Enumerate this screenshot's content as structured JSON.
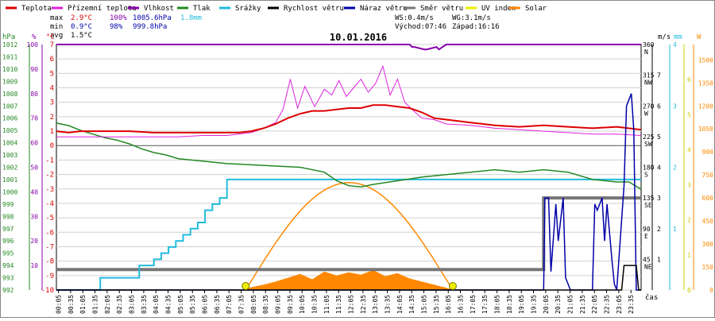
{
  "chart_data": {
    "type": "line",
    "title": "10.01.2016",
    "xlabel": "čas",
    "x_ticks": [
      "00:05",
      "00:35",
      "01:05",
      "01:35",
      "02:05",
      "02:35",
      "03:05",
      "03:35",
      "04:05",
      "04:35",
      "05:05",
      "05:35",
      "06:05",
      "06:35",
      "07:05",
      "07:35",
      "08:05",
      "08:35",
      "09:05",
      "09:35",
      "10:05",
      "10:35",
      "11:05",
      "11:35",
      "12:05",
      "12:35",
      "13:05",
      "13:35",
      "14:05",
      "14:35",
      "15:05",
      "15:35",
      "16:05",
      "16:35",
      "17:05",
      "17:35",
      "18:05",
      "18:35",
      "19:05",
      "19:35",
      "20:05",
      "20:35",
      "21:05",
      "21:35",
      "22:05",
      "22:35",
      "23:05",
      "23:35"
    ],
    "legend": [
      {
        "name": "Teplota",
        "color": "#dd0000"
      },
      {
        "name": "Přízemní teplota",
        "color": "#dd22dd"
      },
      {
        "name": "Vlhkost",
        "color": "#8800aa"
      },
      {
        "name": "Tlak",
        "color": "#228822"
      },
      {
        "name": "Srážky",
        "color": "#22bbdd"
      },
      {
        "name": "Rychlost větru",
        "color": "#000000"
      },
      {
        "name": "Náraz větru",
        "color": "#0000aa"
      },
      {
        "name": "Směr větru",
        "color": "#777777"
      },
      {
        "name": "UV index",
        "color": "#eeee00"
      },
      {
        "name": "Solar",
        "color": "#ff8800"
      }
    ],
    "stats": [
      {
        "label": "max",
        "temp": "2.9°C",
        "hum": "100%",
        "press": "1005.6hPa",
        "rain": "1.8mm"
      },
      {
        "label": "min",
        "temp": "0.9°C",
        "hum": "98%",
        "press": "999.8hPa",
        "rain": ""
      },
      {
        "label": "avg",
        "temp": "1.5°C",
        "hum": "",
        "press": "",
        "rain": ""
      }
    ],
    "info": {
      "ws": "WS:0.4m/s",
      "wg": "WG:3.1m/s",
      "sunrise": "Východ:07:46",
      "sunset": "Západ:16:16"
    },
    "axes": {
      "hpa": {
        "unit": "hPa",
        "ticks": [
          "992",
          "993",
          "994",
          "995",
          "996",
          "997",
          "998",
          "999",
          "1000",
          "1001",
          "1002",
          "1003",
          "1004",
          "1005",
          "1006",
          "1007",
          "1008",
          "1009",
          "1010",
          "1011",
          "1012"
        ]
      },
      "pct": {
        "unit": "%",
        "ticks": [
          "10",
          "20",
          "30",
          "40",
          "50",
          "60",
          "70",
          "80",
          "90",
          "100"
        ]
      },
      "temp": {
        "unit": "°C",
        "ticks": [
          "-10",
          "-9",
          "-8",
          "-7",
          "-6",
          "-5",
          "-4",
          "-3",
          "-2",
          "-1",
          "0",
          "1",
          "2",
          "3",
          "4",
          "5",
          "6",
          "7"
        ]
      },
      "dir": {
        "ticks": [
          {
            "v": "360",
            "d": "N"
          },
          {
            "v": "315",
            "d": "NW"
          },
          {
            "v": "270",
            "d": "W"
          },
          {
            "v": "225",
            "d": "SW"
          },
          {
            "v": "180",
            "d": "S"
          },
          {
            "v": "135",
            "d": "SE"
          },
          {
            "v": "90",
            "d": "E"
          },
          {
            "v": "45",
            "d": "NE"
          }
        ]
      },
      "ms": {
        "unit": "m/s",
        "ticks": [
          "1",
          "2",
          "3",
          "4",
          "5",
          "6",
          "7"
        ]
      },
      "mm": {
        "unit": "mm",
        "ticks": [
          "1",
          "2",
          "3",
          "4"
        ]
      },
      "uv": {
        "ticks": [
          "0",
          "1",
          "2",
          "3",
          "4",
          "5",
          "6"
        ]
      },
      "w": {
        "unit": "W",
        "ticks": [
          "0",
          "150",
          "300",
          "450",
          "600",
          "750",
          "900",
          "1050",
          "1200",
          "1350",
          "1500"
        ]
      }
    },
    "series": [
      {
        "name": "Teplota",
        "unit": "°C",
        "x": [
          0,
          0.5,
          1,
          2,
          3,
          4,
          5,
          6,
          7,
          7.5,
          8,
          8.5,
          9,
          9.5,
          10,
          10.5,
          11,
          11.5,
          12,
          12.5,
          13,
          13.5,
          14,
          14.5,
          15,
          15.5,
          16,
          17,
          18,
          19,
          20,
          21,
          22,
          23,
          24
        ],
        "values": [
          1.0,
          0.9,
          1.0,
          1.0,
          1.0,
          0.9,
          0.9,
          0.9,
          0.9,
          0.9,
          1.0,
          1.2,
          1.5,
          1.9,
          2.2,
          2.4,
          2.4,
          2.5,
          2.6,
          2.6,
          2.8,
          2.8,
          2.7,
          2.6,
          2.3,
          1.9,
          1.8,
          1.6,
          1.4,
          1.3,
          1.4,
          1.3,
          1.2,
          1.3,
          1.1
        ]
      },
      {
        "name": "Přízemní teplota",
        "unit": "°C",
        "x": [
          0,
          1,
          2,
          3,
          4,
          5,
          6,
          7,
          7.5,
          8,
          8.5,
          9,
          9.3,
          9.6,
          9.9,
          10.2,
          10.6,
          11,
          11.3,
          11.6,
          11.9,
          12.2,
          12.5,
          12.8,
          13.1,
          13.4,
          13.7,
          14,
          14.3,
          14.6,
          15,
          15.5,
          16,
          17,
          18,
          19,
          20,
          21,
          22,
          23,
          24
        ],
        "values": [
          0.6,
          0.6,
          0.6,
          0.6,
          0.6,
          0.6,
          0.7,
          0.7,
          0.8,
          0.9,
          1.2,
          1.6,
          2.5,
          4.6,
          2.6,
          4.1,
          2.7,
          3.9,
          3.5,
          4.5,
          3.4,
          4.0,
          4.6,
          3.7,
          4.3,
          5.5,
          3.5,
          4.6,
          3.0,
          2.5,
          1.9,
          1.8,
          1.5,
          1.4,
          1.2,
          1.1,
          1.0,
          0.9,
          0.8,
          0.8,
          0.7
        ]
      },
      {
        "name": "Vlhkost",
        "unit": "%",
        "x": [
          0,
          14.5,
          14.6,
          14.7,
          15.1,
          15.2,
          15.6,
          15.7,
          16.0,
          24
        ],
        "values": [
          100,
          100,
          99,
          99,
          98,
          98,
          99,
          98,
          100,
          100
        ]
      },
      {
        "name": "Tlak",
        "unit": "hPa",
        "x": [
          0,
          0.5,
          1,
          1.5,
          2,
          2.5,
          3,
          3.5,
          4,
          4.5,
          5,
          6,
          7,
          8,
          9,
          10,
          11,
          11.5,
          12,
          12.5,
          13,
          14,
          15,
          16,
          17,
          18,
          19,
          20,
          21,
          22,
          23,
          23.5,
          24
        ],
        "values": [
          1005.6,
          1005.4,
          1005.0,
          1004.7,
          1004.4,
          1004.2,
          1003.9,
          1003.5,
          1003.2,
          1003.0,
          1002.7,
          1002.5,
          1002.3,
          1002.2,
          1002.1,
          1002.0,
          1001.6,
          1000.9,
          1000.5,
          1000.4,
          1000.6,
          1000.9,
          1001.2,
          1001.4,
          1001.6,
          1001.8,
          1001.6,
          1001.8,
          1001.6,
          1001.0,
          1000.8,
          1000.8,
          1000.2
        ]
      },
      {
        "name": "Srážky",
        "unit": "mm",
        "x": [
          0,
          1.8,
          1.8,
          3.4,
          3.4,
          4.0,
          4.0,
          4.3,
          4.3,
          4.6,
          4.6,
          4.9,
          4.9,
          5.2,
          5.2,
          5.5,
          5.5,
          5.8,
          5.8,
          6.1,
          6.1,
          6.4,
          6.4,
          6.7,
          6.7,
          7.0,
          7.0,
          24
        ],
        "values": [
          0,
          0,
          0.2,
          0.2,
          0.4,
          0.4,
          0.5,
          0.5,
          0.6,
          0.6,
          0.7,
          0.7,
          0.8,
          0.8,
          0.9,
          0.9,
          1.0,
          1.0,
          1.1,
          1.1,
          1.3,
          1.3,
          1.4,
          1.4,
          1.5,
          1.5,
          1.8,
          1.8
        ]
      },
      {
        "name": "Náraz větru",
        "unit": "m/s",
        "x": [
          0,
          20.0,
          20.05,
          20.2,
          20.3,
          20.5,
          20.6,
          20.8,
          20.9,
          21.1,
          22.0,
          22.1,
          22.2,
          22.4,
          22.5,
          22.6,
          22.8,
          22.9,
          23.0,
          23.3,
          23.4,
          23.6,
          23.7,
          23.8,
          24
        ],
        "values": [
          0,
          0,
          1.5,
          1.5,
          0.3,
          1.4,
          0.8,
          1.5,
          0.2,
          0,
          0,
          1.4,
          1.3,
          1.5,
          0.8,
          1.4,
          0.5,
          0.1,
          0,
          1.7,
          3.0,
          3.2,
          2.6,
          0,
          0
        ]
      },
      {
        "name": "Rychlost větru",
        "unit": "m/s",
        "x": [
          0,
          23.2,
          23.3,
          23.8,
          23.9,
          24
        ],
        "values": [
          0,
          0,
          0.4,
          0.4,
          0,
          0
        ]
      },
      {
        "name": "Směr větru",
        "unit": "°",
        "x": [
          0,
          20.0,
          20.0,
          24
        ],
        "values": [
          30,
          30,
          135,
          135
        ]
      },
      {
        "name": "Solar",
        "unit": "W",
        "x": [
          7.6,
          8.0,
          8.5,
          9.0,
          9.5,
          10.0,
          10.5,
          11.0,
          11.5,
          12.0,
          12.5,
          13.0,
          13.5,
          14.0,
          14.5,
          15.0,
          15.5,
          16.0,
          16.3
        ],
        "values": [
          0,
          18,
          35,
          55,
          80,
          105,
          70,
          120,
          95,
          115,
          100,
          130,
          90,
          110,
          75,
          55,
          35,
          15,
          0
        ]
      },
      {
        "name": "Solar theoretical",
        "unit": "W",
        "x": [
          7.77,
          8.5,
          9.5,
          10.5,
          11.5,
          12.0,
          12.5,
          13.5,
          14.5,
          15.5,
          16.27
        ],
        "values": [
          0,
          250,
          480,
          630,
          690,
          700,
          690,
          630,
          480,
          250,
          0
        ]
      }
    ],
    "sun_markers": {
      "unit": "time",
      "values": [
        7.77,
        16.27
      ]
    }
  }
}
